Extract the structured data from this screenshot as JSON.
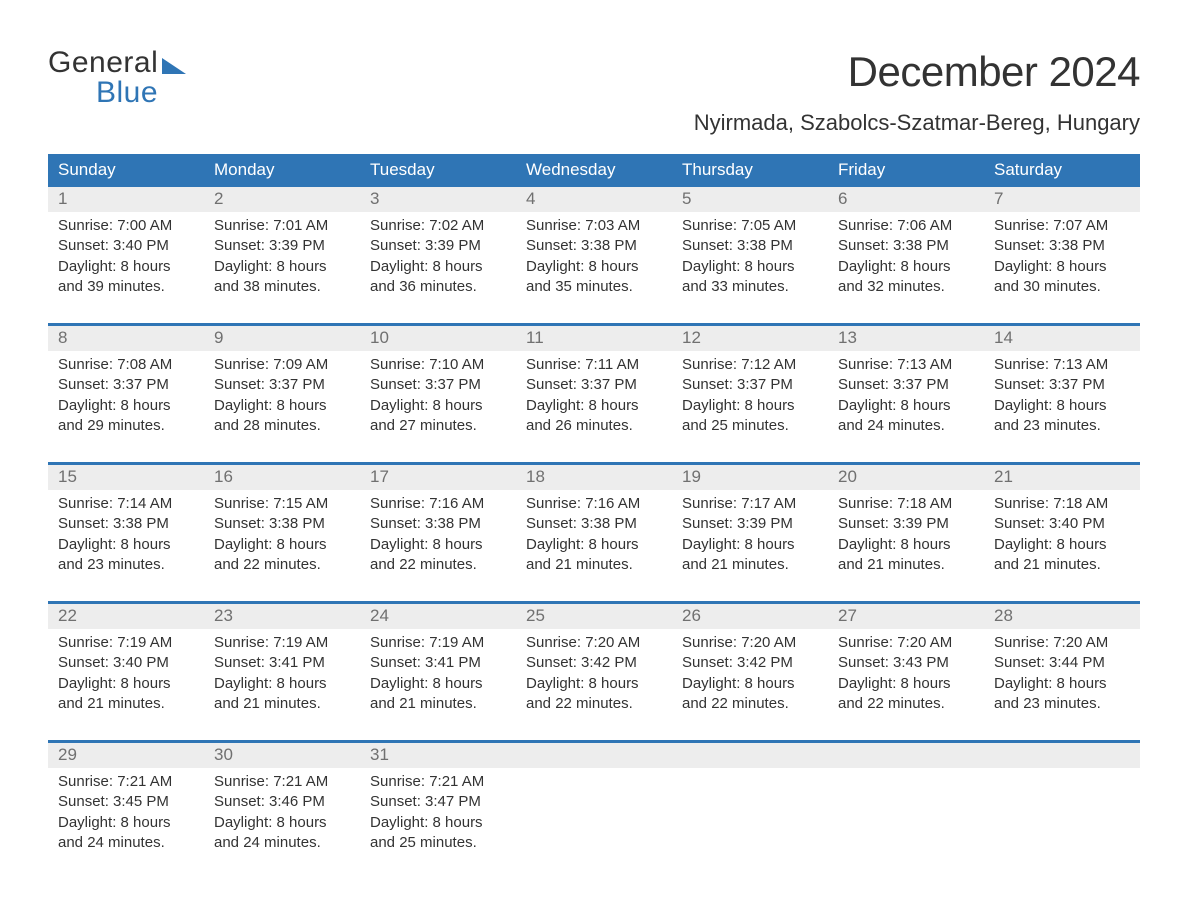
{
  "brand": {
    "word1": "General",
    "word2": "Blue",
    "accent_color": "#2f75b5"
  },
  "title": "December 2024",
  "location": "Nyirmada, Szabolcs-Szatmar-Bereg, Hungary",
  "colors": {
    "header_bg": "#2f75b5",
    "header_text": "#ffffff",
    "daynum_bg": "#ededed",
    "daynum_text": "#707070",
    "body_text": "#333333",
    "page_bg": "#ffffff"
  },
  "typography": {
    "title_fontsize": 42,
    "location_fontsize": 22,
    "colheader_fontsize": 17,
    "daynum_fontsize": 17,
    "body_fontsize": 15
  },
  "columns": [
    "Sunday",
    "Monday",
    "Tuesday",
    "Wednesday",
    "Thursday",
    "Friday",
    "Saturday"
  ],
  "weeks": [
    [
      {
        "n": "1",
        "sr": "Sunrise: 7:00 AM",
        "ss": "Sunset: 3:40 PM",
        "d1": "Daylight: 8 hours",
        "d2": "and 39 minutes."
      },
      {
        "n": "2",
        "sr": "Sunrise: 7:01 AM",
        "ss": "Sunset: 3:39 PM",
        "d1": "Daylight: 8 hours",
        "d2": "and 38 minutes."
      },
      {
        "n": "3",
        "sr": "Sunrise: 7:02 AM",
        "ss": "Sunset: 3:39 PM",
        "d1": "Daylight: 8 hours",
        "d2": "and 36 minutes."
      },
      {
        "n": "4",
        "sr": "Sunrise: 7:03 AM",
        "ss": "Sunset: 3:38 PM",
        "d1": "Daylight: 8 hours",
        "d2": "and 35 minutes."
      },
      {
        "n": "5",
        "sr": "Sunrise: 7:05 AM",
        "ss": "Sunset: 3:38 PM",
        "d1": "Daylight: 8 hours",
        "d2": "and 33 minutes."
      },
      {
        "n": "6",
        "sr": "Sunrise: 7:06 AM",
        "ss": "Sunset: 3:38 PM",
        "d1": "Daylight: 8 hours",
        "d2": "and 32 minutes."
      },
      {
        "n": "7",
        "sr": "Sunrise: 7:07 AM",
        "ss": "Sunset: 3:38 PM",
        "d1": "Daylight: 8 hours",
        "d2": "and 30 minutes."
      }
    ],
    [
      {
        "n": "8",
        "sr": "Sunrise: 7:08 AM",
        "ss": "Sunset: 3:37 PM",
        "d1": "Daylight: 8 hours",
        "d2": "and 29 minutes."
      },
      {
        "n": "9",
        "sr": "Sunrise: 7:09 AM",
        "ss": "Sunset: 3:37 PM",
        "d1": "Daylight: 8 hours",
        "d2": "and 28 minutes."
      },
      {
        "n": "10",
        "sr": "Sunrise: 7:10 AM",
        "ss": "Sunset: 3:37 PM",
        "d1": "Daylight: 8 hours",
        "d2": "and 27 minutes."
      },
      {
        "n": "11",
        "sr": "Sunrise: 7:11 AM",
        "ss": "Sunset: 3:37 PM",
        "d1": "Daylight: 8 hours",
        "d2": "and 26 minutes."
      },
      {
        "n": "12",
        "sr": "Sunrise: 7:12 AM",
        "ss": "Sunset: 3:37 PM",
        "d1": "Daylight: 8 hours",
        "d2": "and 25 minutes."
      },
      {
        "n": "13",
        "sr": "Sunrise: 7:13 AM",
        "ss": "Sunset: 3:37 PM",
        "d1": "Daylight: 8 hours",
        "d2": "and 24 minutes."
      },
      {
        "n": "14",
        "sr": "Sunrise: 7:13 AM",
        "ss": "Sunset: 3:37 PM",
        "d1": "Daylight: 8 hours",
        "d2": "and 23 minutes."
      }
    ],
    [
      {
        "n": "15",
        "sr": "Sunrise: 7:14 AM",
        "ss": "Sunset: 3:38 PM",
        "d1": "Daylight: 8 hours",
        "d2": "and 23 minutes."
      },
      {
        "n": "16",
        "sr": "Sunrise: 7:15 AM",
        "ss": "Sunset: 3:38 PM",
        "d1": "Daylight: 8 hours",
        "d2": "and 22 minutes."
      },
      {
        "n": "17",
        "sr": "Sunrise: 7:16 AM",
        "ss": "Sunset: 3:38 PM",
        "d1": "Daylight: 8 hours",
        "d2": "and 22 minutes."
      },
      {
        "n": "18",
        "sr": "Sunrise: 7:16 AM",
        "ss": "Sunset: 3:38 PM",
        "d1": "Daylight: 8 hours",
        "d2": "and 21 minutes."
      },
      {
        "n": "19",
        "sr": "Sunrise: 7:17 AM",
        "ss": "Sunset: 3:39 PM",
        "d1": "Daylight: 8 hours",
        "d2": "and 21 minutes."
      },
      {
        "n": "20",
        "sr": "Sunrise: 7:18 AM",
        "ss": "Sunset: 3:39 PM",
        "d1": "Daylight: 8 hours",
        "d2": "and 21 minutes."
      },
      {
        "n": "21",
        "sr": "Sunrise: 7:18 AM",
        "ss": "Sunset: 3:40 PM",
        "d1": "Daylight: 8 hours",
        "d2": "and 21 minutes."
      }
    ],
    [
      {
        "n": "22",
        "sr": "Sunrise: 7:19 AM",
        "ss": "Sunset: 3:40 PM",
        "d1": "Daylight: 8 hours",
        "d2": "and 21 minutes."
      },
      {
        "n": "23",
        "sr": "Sunrise: 7:19 AM",
        "ss": "Sunset: 3:41 PM",
        "d1": "Daylight: 8 hours",
        "d2": "and 21 minutes."
      },
      {
        "n": "24",
        "sr": "Sunrise: 7:19 AM",
        "ss": "Sunset: 3:41 PM",
        "d1": "Daylight: 8 hours",
        "d2": "and 21 minutes."
      },
      {
        "n": "25",
        "sr": "Sunrise: 7:20 AM",
        "ss": "Sunset: 3:42 PM",
        "d1": "Daylight: 8 hours",
        "d2": "and 22 minutes."
      },
      {
        "n": "26",
        "sr": "Sunrise: 7:20 AM",
        "ss": "Sunset: 3:42 PM",
        "d1": "Daylight: 8 hours",
        "d2": "and 22 minutes."
      },
      {
        "n": "27",
        "sr": "Sunrise: 7:20 AM",
        "ss": "Sunset: 3:43 PM",
        "d1": "Daylight: 8 hours",
        "d2": "and 22 minutes."
      },
      {
        "n": "28",
        "sr": "Sunrise: 7:20 AM",
        "ss": "Sunset: 3:44 PM",
        "d1": "Daylight: 8 hours",
        "d2": "and 23 minutes."
      }
    ],
    [
      {
        "n": "29",
        "sr": "Sunrise: 7:21 AM",
        "ss": "Sunset: 3:45 PM",
        "d1": "Daylight: 8 hours",
        "d2": "and 24 minutes."
      },
      {
        "n": "30",
        "sr": "Sunrise: 7:21 AM",
        "ss": "Sunset: 3:46 PM",
        "d1": "Daylight: 8 hours",
        "d2": "and 24 minutes."
      },
      {
        "n": "31",
        "sr": "Sunrise: 7:21 AM",
        "ss": "Sunset: 3:47 PM",
        "d1": "Daylight: 8 hours",
        "d2": "and 25 minutes."
      },
      null,
      null,
      null,
      null
    ]
  ]
}
